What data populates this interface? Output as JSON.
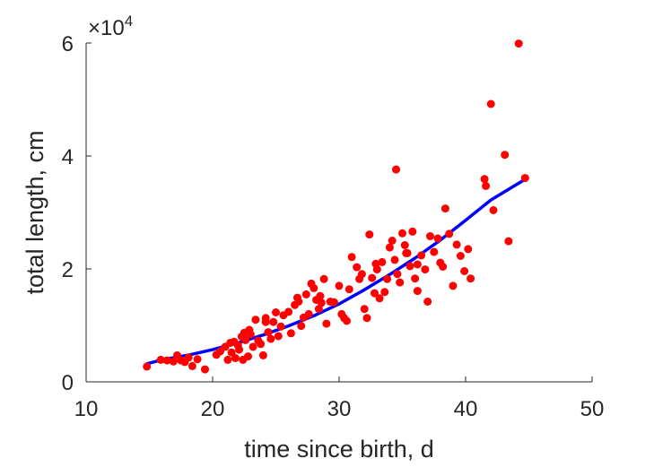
{
  "chart_data": {
    "type": "scatter",
    "xlabel": "time since birth, d",
    "ylabel": "total length, cm",
    "xlim": [
      10,
      50
    ],
    "ylim": [
      0,
      60000
    ],
    "x_ticks": [
      10,
      20,
      30,
      40,
      50
    ],
    "y_ticks": [
      0,
      20000,
      40000,
      60000
    ],
    "x_tick_labels": [
      "10",
      "20",
      "30",
      "40",
      "50"
    ],
    "y_tick_labels": [
      "0",
      "2",
      "4",
      "6"
    ],
    "y_exponent_base": "×10",
    "y_exponent_power": "4",
    "grid": false,
    "colors": {
      "points": "#ff0000",
      "fit": "#0000ff",
      "axes": "#262626"
    },
    "fit_line": {
      "x": [
        14.8,
        16,
        18,
        20,
        22,
        24,
        26,
        28,
        30,
        32,
        34,
        36,
        38,
        40,
        42,
        44.8
      ],
      "y": [
        3200,
        3900,
        4700,
        5700,
        6900,
        8300,
        9900,
        11700,
        13800,
        16300,
        19000,
        21900,
        25100,
        28600,
        32200,
        36000
      ]
    },
    "points": {
      "x": [
        14.8,
        15.9,
        16.4,
        16.9,
        17.2,
        17.5,
        17.8,
        18.1,
        18.4,
        18.8,
        19.4,
        20.3,
        20.6,
        21.0,
        21.2,
        21.4,
        21.5,
        21.7,
        21.8,
        22.0,
        22.1,
        22.3,
        22.4,
        22.6,
        22.8,
        22.9,
        23.0,
        23.2,
        23.4,
        23.6,
        23.8,
        24.0,
        24.2,
        24.4,
        24.6,
        24.8,
        25.0,
        25.2,
        25.4,
        25.6,
        26.0,
        26.2,
        26.5,
        26.8,
        27.0,
        27.2,
        27.4,
        27.6,
        27.8,
        28.0,
        28.2,
        28.4,
        28.6,
        28.8,
        29.0,
        29.3,
        29.6,
        30.0,
        30.2,
        30.4,
        30.6,
        31.0,
        31.4,
        31.6,
        31.8,
        32.0,
        32.2,
        32.4,
        32.6,
        32.8,
        33.0,
        33.2,
        33.4,
        33.6,
        33.8,
        34.0,
        34.2,
        34.4,
        34.6,
        34.8,
        35.0,
        35.2,
        35.4,
        35.6,
        35.8,
        36.0,
        36.2,
        36.5,
        36.8,
        37.0,
        37.2,
        37.5,
        37.8,
        38.0,
        38.2,
        38.4,
        38.7,
        39.0,
        39.3,
        39.6,
        39.9,
        40.2,
        40.4,
        41.5,
        41.6,
        42.0,
        42.2,
        43.1,
        43.4,
        44.2,
        44.7,
        34.5,
        32.9,
        35.3,
        36.2,
        30.8,
        28.5,
        26.7,
        24.2,
        22.5
      ],
      "y": [
        2700,
        3900,
        3800,
        3600,
        4700,
        3800,
        3500,
        4300,
        2800,
        4000,
        2200,
        4800,
        5400,
        6200,
        3900,
        6900,
        5200,
        7100,
        4200,
        6500,
        5700,
        8000,
        3900,
        7400,
        4500,
        9200,
        8400,
        6200,
        11000,
        7300,
        6700,
        4700,
        11300,
        8800,
        7600,
        10600,
        12300,
        8100,
        9800,
        11800,
        12400,
        8600,
        13600,
        14200,
        9900,
        11400,
        15500,
        12000,
        17400,
        16600,
        14500,
        12900,
        14000,
        18200,
        10300,
        14200,
        14100,
        17000,
        12000,
        11300,
        10800,
        22100,
        20300,
        18200,
        19100,
        12900,
        11300,
        26100,
        18400,
        15700,
        19900,
        14800,
        21200,
        15900,
        18200,
        23800,
        25000,
        21600,
        19100,
        17600,
        26300,
        24200,
        22800,
        20500,
        26600,
        18300,
        16100,
        22400,
        19900,
        14200,
        25800,
        23000,
        25400,
        21100,
        20400,
        30700,
        26200,
        17000,
        24300,
        22300,
        19600,
        23500,
        18300,
        35900,
        34700,
        49200,
        30400,
        40200,
        24900,
        59900,
        36100,
        37600,
        20900,
        22800,
        20800,
        16400,
        15200,
        14900,
        10600,
        8700
      ]
    }
  }
}
